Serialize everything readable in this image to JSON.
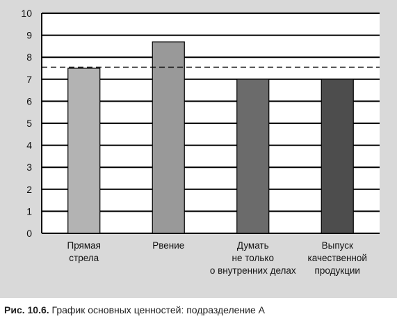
{
  "chart_data": {
    "type": "bar",
    "categories": [
      [
        "Прямая",
        "стрела"
      ],
      [
        "Рвение"
      ],
      [
        "Думать",
        "не только",
        "о внутренних делах"
      ],
      [
        "Выпуск",
        "качественной",
        "продукции"
      ]
    ],
    "values": [
      7.5,
      8.7,
      7.0,
      7.0
    ],
    "bar_colors": [
      "#b3b3b3",
      "#999999",
      "#6b6b6b",
      "#4d4d4d"
    ],
    "ylim": [
      0,
      10
    ],
    "yticks": [
      "0",
      "1",
      "2",
      "3",
      "4",
      "5",
      "6",
      "7",
      "8",
      "9",
      "10"
    ],
    "reference_line": 7.55,
    "grid": true,
    "title": "",
    "xlabel": "",
    "ylabel": ""
  },
  "caption": {
    "label": "Рис. 10.6.",
    "text": "График основных ценностей: подразделение А"
  }
}
